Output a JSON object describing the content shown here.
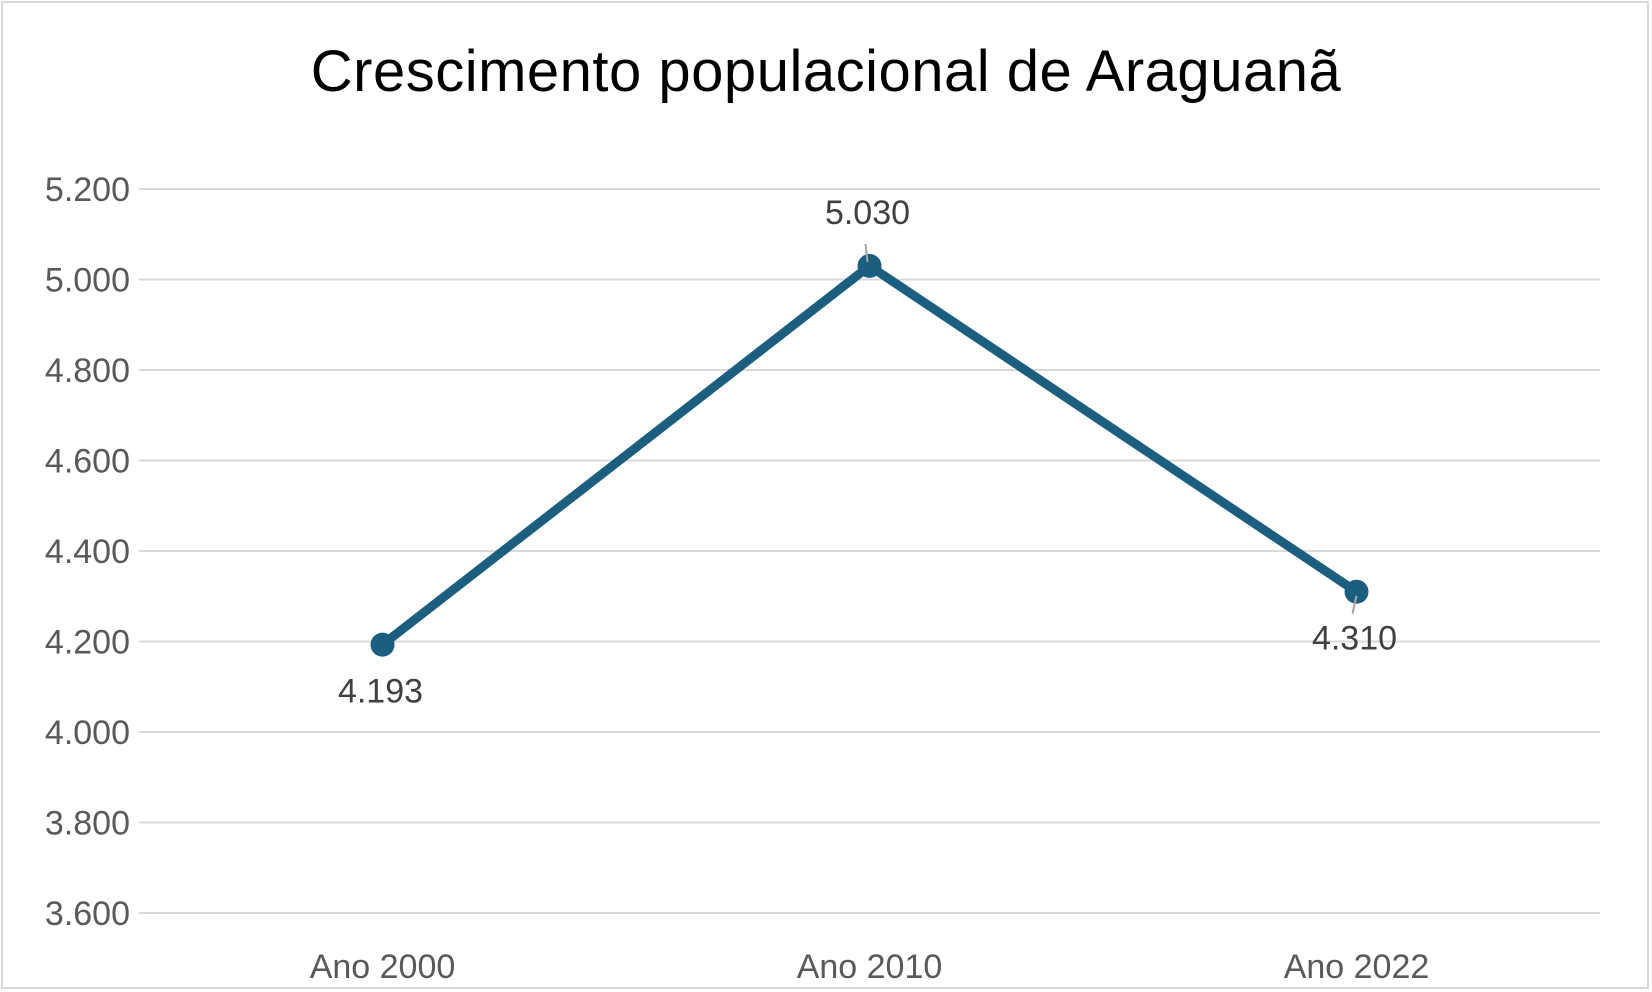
{
  "chart_data": {
    "type": "line",
    "title": "Crescimento populacional de Araguanã",
    "xlabel": "",
    "ylabel": "",
    "categories": [
      "Ano 2000",
      "Ano 2010",
      "Ano 2022"
    ],
    "series": [
      {
        "values": [
          4193,
          5030,
          4310
        ],
        "data_labels": [
          "4.193",
          "5.030",
          "4.310"
        ],
        "color": "#1b5e80",
        "marker": "circle"
      }
    ],
    "ylim": [
      3600,
      5200
    ],
    "yticks": [
      3600,
      3800,
      4000,
      4200,
      4400,
      4600,
      4800,
      5000,
      5200
    ],
    "ytick_labels": [
      "3.600",
      "3.800",
      "4.000",
      "4.200",
      "4.400",
      "4.600",
      "4.800",
      "5.000",
      "5.200"
    ],
    "grid": true,
    "legend": "none",
    "colors": {
      "gridline": "#d9d9d9",
      "line": "#1b5e80",
      "border": "#d9d9d9"
    }
  }
}
